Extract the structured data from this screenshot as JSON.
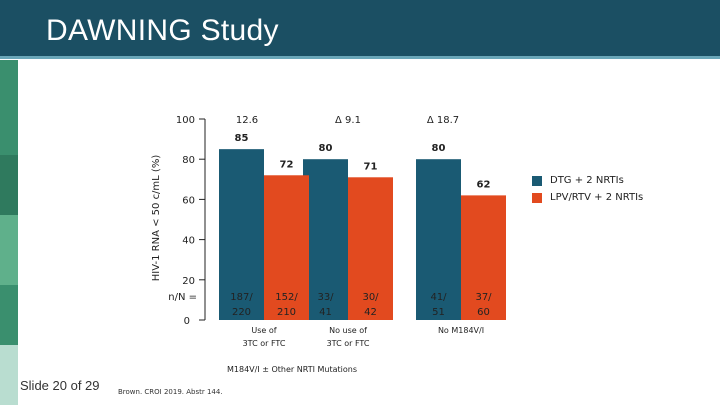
{
  "slide": {
    "title": "DAWNING Study",
    "slide_number": "Slide 20 of 29",
    "citation": "Brown. CROI 2019. Abstr 144.",
    "colors": {
      "header": "#1b4f63",
      "accent_band": "#6aa6b8",
      "strip": [
        "#3a8f6e",
        "#2f7a5e",
        "#5fb08b",
        "#3a8f6e",
        "#b9ddd0"
      ]
    }
  },
  "chart_data": {
    "type": "bar",
    "ylabel": "HIV-1 RNA < 50 c/mL (%)",
    "ylim": [
      0,
      100
    ],
    "yticks": [
      0,
      20,
      40,
      60,
      80,
      100
    ],
    "n_label": "n/N =",
    "group_title": "M184V/I ± Other NRTI Mutations",
    "categories": [
      "Use of 3TC or FTC",
      "No use of 3TC or FTC",
      "No M184V/I"
    ],
    "category_lines": [
      [
        "Use of",
        "3TC or FTC"
      ],
      [
        "No use of",
        "3TC or FTC"
      ],
      [
        "No M184V/I"
      ]
    ],
    "deltas": [
      "12.6",
      "Δ 9.1",
      "Δ 18.7"
    ],
    "series": [
      {
        "name": "DTG + 2 NRTIs",
        "color": "#1a5a73",
        "values": [
          85,
          80,
          80
        ],
        "values_text": [
          "85",
          "80",
          "80"
        ],
        "n": [
          [
            "187/",
            "220"
          ],
          [
            "33/",
            "41"
          ],
          [
            "41/",
            "51"
          ]
        ]
      },
      {
        "name": "LPV/RTV + 2 NRTIs",
        "color": "#e24a1f",
        "values": [
          72,
          71,
          62
        ],
        "values_text": [
          "72",
          "71",
          "62"
        ],
        "n": [
          [
            "152/",
            "210"
          ],
          [
            "30/",
            "42"
          ],
          [
            "37/",
            "60"
          ]
        ]
      }
    ]
  }
}
